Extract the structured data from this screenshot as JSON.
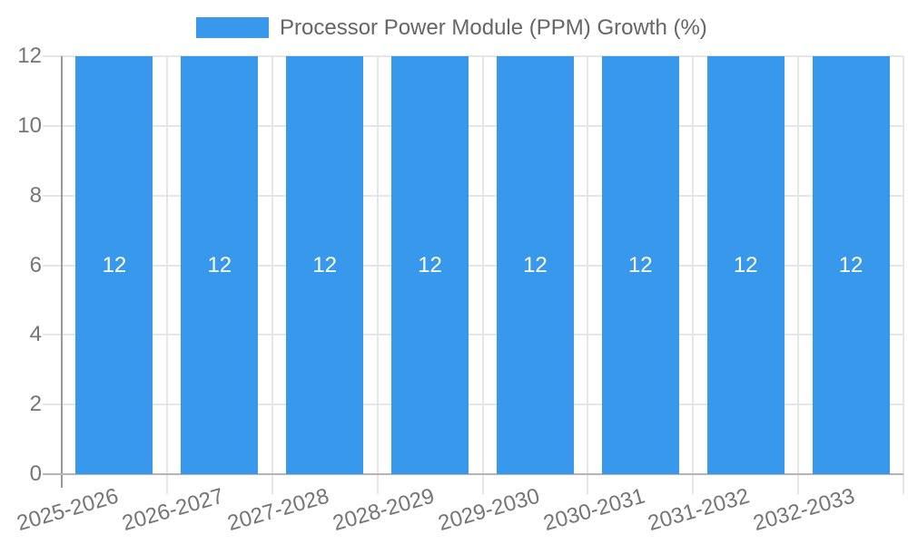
{
  "chart_data": {
    "type": "bar",
    "legend": {
      "label": "Processor Power Module (PPM) Growth (%)",
      "position": "top"
    },
    "categories": [
      "2025-2026",
      "2026-2027",
      "2027-2028",
      "2028-2029",
      "2029-2030",
      "2030-2031",
      "2031-2032",
      "2032-2033"
    ],
    "series": [
      {
        "name": "Processor Power Module (PPM) Growth (%)",
        "values": [
          12,
          12,
          12,
          12,
          12,
          12,
          12,
          12
        ]
      }
    ],
    "bar_value_labels": [
      "12",
      "12",
      "12",
      "12",
      "12",
      "12",
      "12",
      "12"
    ],
    "xlabel": "",
    "ylabel": "",
    "ylim": [
      0,
      12
    ],
    "yticks": [
      0,
      2,
      4,
      6,
      8,
      10,
      12
    ],
    "grid": true,
    "colors": {
      "bar": "#3899ec",
      "bar_label": "#ffffff",
      "grid": "#e6e6e6",
      "y_axis_line": "#999999",
      "x_axis_line": "#b5b5b5",
      "tick_text": "#757575",
      "legend_text": "#666666",
      "background": "#ffffff"
    }
  }
}
